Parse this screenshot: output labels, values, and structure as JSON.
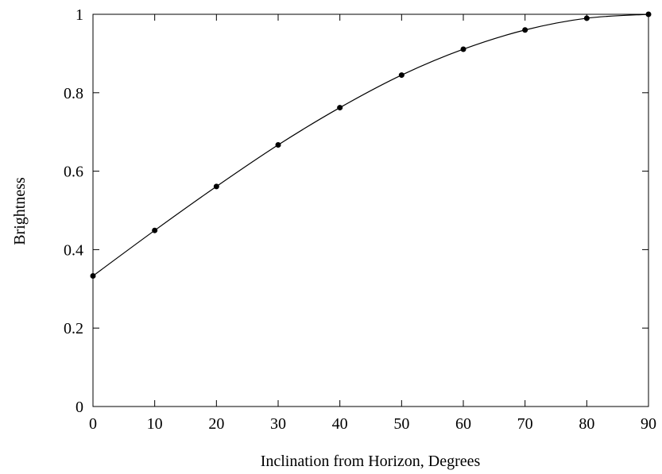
{
  "chart_data": {
    "type": "line",
    "title": "",
    "xlabel": "Inclination from Horizon, Degrees",
    "ylabel": "Brightness",
    "xlim": [
      0,
      90
    ],
    "ylim": [
      0,
      1
    ],
    "xticks": [
      0,
      10,
      20,
      30,
      40,
      50,
      60,
      70,
      80,
      90
    ],
    "xtick_labels": [
      "0",
      "10",
      "20",
      "30",
      "40",
      "50",
      "60",
      "70",
      "80",
      "90"
    ],
    "yticks": [
      0,
      0.2,
      0.4,
      0.6,
      0.8,
      1
    ],
    "ytick_labels": [
      "0",
      "0.2",
      "0.4",
      "0.6",
      "0.8",
      "1"
    ],
    "grid": false,
    "legend": "none",
    "colors": {
      "line": "#000000",
      "markers": "#000000",
      "axes": "#000000"
    },
    "series": [
      {
        "x": [
          0,
          10,
          20,
          30,
          40,
          50,
          60,
          70,
          80,
          90
        ],
        "y": [
          0.333,
          0.449,
          0.561,
          0.667,
          0.762,
          0.845,
          0.911,
          0.96,
          0.99,
          1.0
        ]
      }
    ]
  }
}
